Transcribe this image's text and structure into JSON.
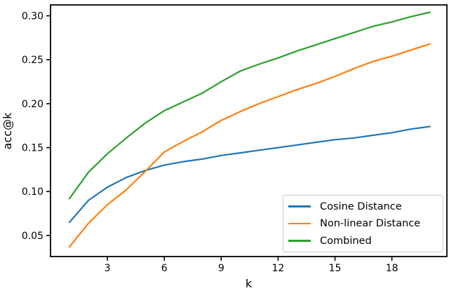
{
  "figure": {
    "background": "#ffffff",
    "axis_color": "#000000",
    "legend_border_color": "#cccccc"
  },
  "chart_data": {
    "type": "line",
    "title": "",
    "xlabel": "k",
    "ylabel": "acc@k",
    "x": [
      1,
      2,
      3,
      4,
      5,
      6,
      7,
      8,
      9,
      10,
      11,
      12,
      13,
      14,
      15,
      16,
      17,
      18,
      19,
      20
    ],
    "series": [
      {
        "name": "Cosine Distance",
        "color": "#1f77b4",
        "values": [
          0.065,
          0.09,
          0.105,
          0.116,
          0.124,
          0.13,
          0.134,
          0.137,
          0.141,
          0.144,
          0.147,
          0.15,
          0.153,
          0.156,
          0.159,
          0.161,
          0.164,
          0.167,
          0.171,
          0.174
        ]
      },
      {
        "name": "Non-linear Distance",
        "color": "#ff7f0e",
        "values": [
          0.037,
          0.064,
          0.085,
          0.102,
          0.123,
          0.145,
          0.157,
          0.168,
          0.181,
          0.191,
          0.2,
          0.208,
          0.216,
          0.223,
          0.231,
          0.24,
          0.248,
          0.254,
          0.261,
          0.268
        ]
      },
      {
        "name": "Combined",
        "color": "#2ca02c",
        "values": [
          0.092,
          0.122,
          0.143,
          0.161,
          0.178,
          0.192,
          0.202,
          0.212,
          0.225,
          0.237,
          0.245,
          0.252,
          0.26,
          0.267,
          0.274,
          0.281,
          0.288,
          0.293,
          0.299,
          0.304
        ]
      }
    ],
    "xlim": [
      0,
      20.9
    ],
    "ylim": [
      0.026,
      0.3124
    ],
    "xticks": [
      3,
      6,
      9,
      12,
      15,
      18
    ],
    "xtick_labels": [
      "3",
      "6",
      "9",
      "12",
      "15",
      "18"
    ],
    "yticks": [
      0.05,
      0.1,
      0.15,
      0.2,
      0.25,
      0.3
    ],
    "ytick_labels": [
      "0.05",
      "0.10",
      "0.15",
      "0.20",
      "0.25",
      "0.30"
    ],
    "grid": false,
    "legend_position": "lower right"
  }
}
